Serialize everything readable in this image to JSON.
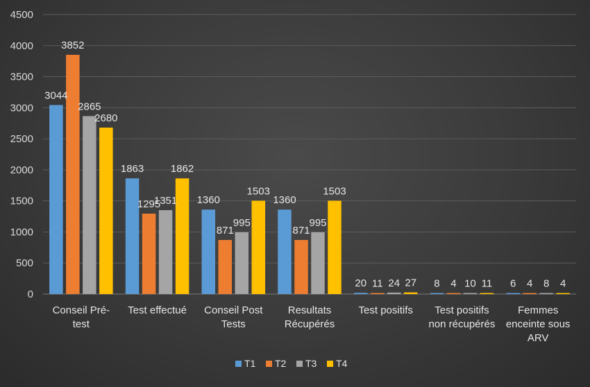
{
  "chart_data": {
    "type": "bar",
    "title": "",
    "xlabel": "",
    "ylabel": "",
    "categories": [
      [
        "Conseil Pré-",
        "test"
      ],
      [
        "Test effectué"
      ],
      [
        "Conseil Post",
        "Tests"
      ],
      [
        "Resultats",
        "Récupérés"
      ],
      [
        "Test positifs"
      ],
      [
        "Test positifs",
        "non récupérés"
      ],
      [
        "Femmes",
        "enceinte sous",
        "ARV"
      ]
    ],
    "series": [
      {
        "name": "T1",
        "color": "#5b9bd5",
        "values": [
          3044,
          1863,
          1360,
          1360,
          20,
          8,
          6
        ]
      },
      {
        "name": "T2",
        "color": "#ed7d31",
        "values": [
          3852,
          1295,
          871,
          871,
          11,
          4,
          4
        ]
      },
      {
        "name": "T3",
        "color": "#a5a5a5",
        "values": [
          2865,
          1351,
          995,
          995,
          24,
          10,
          8
        ]
      },
      {
        "name": "T4",
        "color": "#ffc000",
        "values": [
          2680,
          1862,
          1503,
          1503,
          27,
          11,
          4
        ]
      }
    ],
    "ylim": [
      0,
      4500
    ],
    "yticks": [
      0,
      500,
      1000,
      1500,
      2000,
      2500,
      3000,
      3500,
      4000,
      4500
    ],
    "grid": true,
    "legend_position": "bottom"
  }
}
